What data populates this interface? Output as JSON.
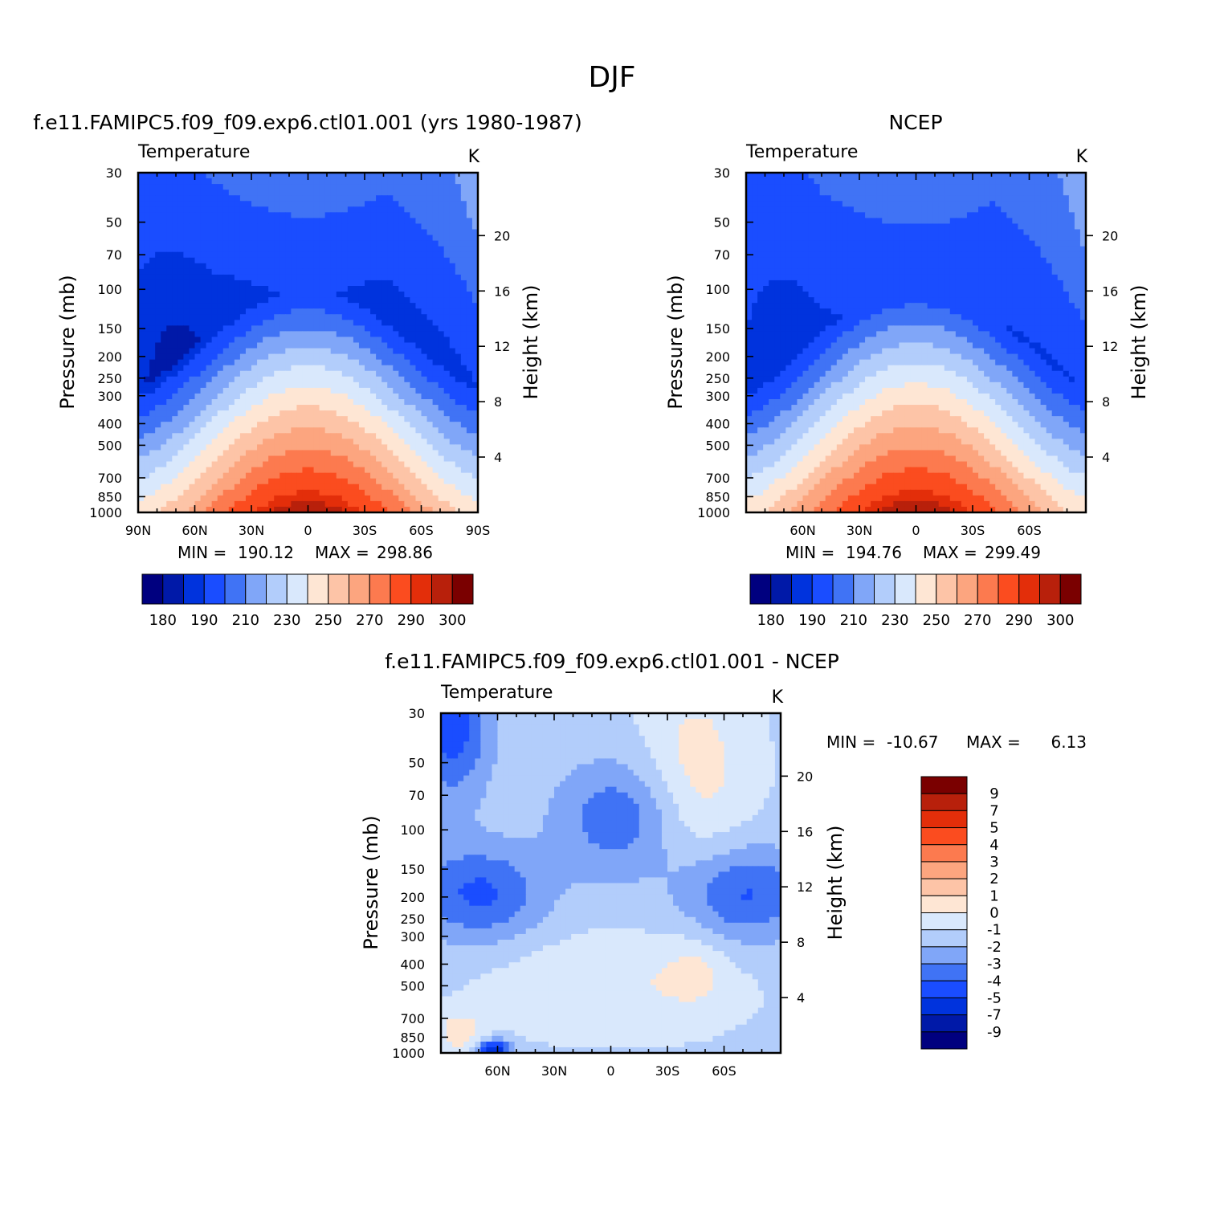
{
  "figure": {
    "title": "DJF"
  },
  "colors": {
    "temp_levels": [
      "#00007f",
      "#0019a8",
      "#0033dd",
      "#1a4dff",
      "#4073f5",
      "#80a6f8",
      "#b2cdfb",
      "#d9e8fc",
      "#fee6d4",
      "#fdc4a7",
      "#fca57f",
      "#fc7a4f",
      "#fb4c1f",
      "#e32e0a",
      "#b8200b",
      "#7a0000"
    ],
    "diff_levels": [
      "#00007f",
      "#0019a8",
      "#0033dd",
      "#1a4dff",
      "#4073f5",
      "#80a6f8",
      "#b2cdfb",
      "#d9e8fc",
      "#fee6d4",
      "#fdc4a7",
      "#fca57f",
      "#fc7a4f",
      "#fb4c1f",
      "#e32e0a",
      "#b8200b",
      "#7a0000"
    ]
  },
  "chart_data": [
    {
      "type": "heatmap",
      "id": "model",
      "title": "f.e11.FAMIPC5.f09_f09.exp6.ctl01.001 (yrs 1980-1987)",
      "variable": "Temperature",
      "units": "K",
      "ylabel": "Pressure (mb)",
      "ylabel_right": "Height (km)",
      "x_ticks": [
        90,
        60,
        30,
        0,
        -30,
        -60,
        -90
      ],
      "x_tick_labels": [
        "90N",
        "60N",
        "30N",
        "0",
        "30S",
        "60S",
        "90S"
      ],
      "xlim": [
        90,
        -90
      ],
      "y_ticks": [
        30,
        50,
        70,
        100,
        150,
        200,
        250,
        300,
        400,
        500,
        700,
        850,
        1000
      ],
      "y_tick_labels": [
        "30",
        "50",
        "70",
        "100",
        "150",
        "200",
        "250",
        "300",
        "400",
        "500",
        "700",
        "850",
        "1000"
      ],
      "ylim": [
        30,
        1000
      ],
      "height_ticks": [
        20,
        16,
        12,
        8,
        4
      ],
      "height_tick_labels": [
        "20",
        "16",
        "12",
        "8",
        "4"
      ],
      "stats": {
        "min_label": "MIN =",
        "min": "190.12",
        "max_label": "MAX =",
        "max": "298.86"
      },
      "colorbar_labels": [
        "180",
        "190",
        "210",
        "230",
        "250",
        "270",
        "290",
        "300"
      ],
      "value_range": [
        180,
        305
      ]
    },
    {
      "type": "heatmap",
      "id": "obs",
      "title": "NCEP",
      "variable": "Temperature",
      "units": "K",
      "ylabel": "Pressure (mb)",
      "ylabel_right": "Height (km)",
      "x_ticks": [
        60,
        30,
        0,
        -30,
        -60
      ],
      "x_tick_labels": [
        "60N",
        "30N",
        "0",
        "30S",
        "60S"
      ],
      "xlim": [
        90,
        -90
      ],
      "y_ticks": [
        30,
        50,
        70,
        100,
        150,
        200,
        250,
        300,
        400,
        500,
        700,
        850,
        1000
      ],
      "y_tick_labels": [
        "30",
        "50",
        "70",
        "100",
        "150",
        "200",
        "250",
        "300",
        "400",
        "500",
        "700",
        "850",
        "1000"
      ],
      "ylim": [
        30,
        1000
      ],
      "height_ticks": [
        20,
        16,
        12,
        8,
        4
      ],
      "height_tick_labels": [
        "20",
        "16",
        "12",
        "8",
        "4"
      ],
      "stats": {
        "min_label": "MIN =",
        "min": "194.76",
        "max_label": "MAX =",
        "max": "299.49"
      },
      "colorbar_labels": [
        "180",
        "190",
        "210",
        "230",
        "250",
        "270",
        "290",
        "300"
      ],
      "value_range": [
        180,
        305
      ]
    },
    {
      "type": "heatmap",
      "id": "diff",
      "title": "f.e11.FAMIPC5.f09_f09.exp6.ctl01.001 - NCEP",
      "variable": "Temperature",
      "units": "K",
      "ylabel": "Pressure (mb)",
      "ylabel_right": "Height (km)",
      "x_ticks": [
        60,
        30,
        0,
        -30,
        -60
      ],
      "x_tick_labels": [
        "60N",
        "30N",
        "0",
        "30S",
        "60S"
      ],
      "xlim": [
        90,
        -90
      ],
      "y_ticks": [
        30,
        50,
        70,
        100,
        150,
        200,
        250,
        300,
        400,
        500,
        700,
        850,
        1000
      ],
      "y_tick_labels": [
        "30",
        "50",
        "70",
        "100",
        "150",
        "200",
        "250",
        "300",
        "400",
        "500",
        "700",
        "850",
        "1000"
      ],
      "ylim": [
        30,
        1000
      ],
      "height_ticks": [
        20,
        16,
        12,
        8,
        4
      ],
      "height_tick_labels": [
        "20",
        "16",
        "12",
        "8",
        "4"
      ],
      "stats": {
        "min_label": "MIN =",
        "min": "-10.67",
        "max_label": "MAX =",
        "max": "6.13"
      },
      "colorbar_labels": [
        "9",
        "7",
        "5",
        "4",
        "3",
        "2",
        "1",
        "0",
        "-1",
        "-2",
        "-3",
        "-4",
        "-5",
        "-7",
        "-9"
      ],
      "levels": [
        -9,
        -7,
        -5,
        -4,
        -3,
        -2,
        -1,
        0,
        1,
        2,
        3,
        4,
        5,
        7,
        9
      ]
    }
  ]
}
